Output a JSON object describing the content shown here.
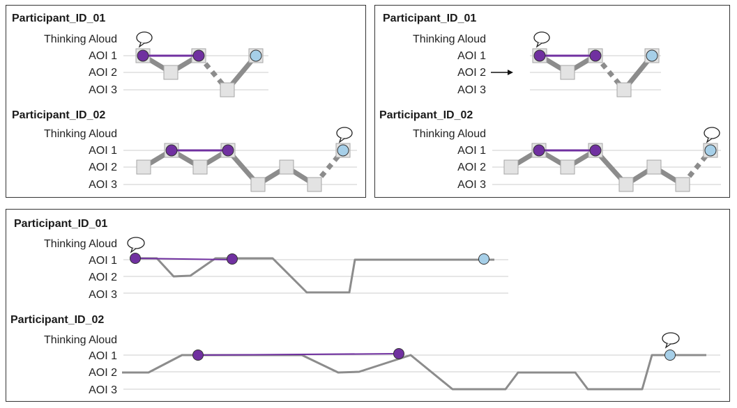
{
  "panels": [
    {
      "id": "top-left",
      "participants": [
        {
          "title": "Participant_ID_01",
          "rows": [
            "Thinking Aloud",
            "AOI 1",
            "AOI 2",
            "AOI 3"
          ]
        },
        {
          "title": "Participant_ID_02",
          "rows": [
            "Thinking Aloud",
            "AOI 1",
            "AOI 2",
            "AOI 3"
          ]
        }
      ]
    },
    {
      "id": "top-right",
      "participants": [
        {
          "title": "Participant_ID_01",
          "rows": [
            "Thinking Aloud",
            "AOI 1",
            "AOI 2",
            "AOI 3"
          ]
        },
        {
          "title": "Participant_ID_02",
          "rows": [
            "Thinking Aloud",
            "AOI 1",
            "AOI 2",
            "AOI 3"
          ]
        }
      ]
    },
    {
      "id": "bottom",
      "participants": [
        {
          "title": "Participant_ID_01",
          "rows": [
            "Thinking Aloud",
            "AOI 1",
            "AOI 2",
            "AOI 3"
          ]
        },
        {
          "title": "Participant_ID_02",
          "rows": [
            "Thinking Aloud",
            "AOI 1",
            "AOI 2",
            "AOI 3"
          ]
        }
      ]
    }
  ],
  "colors": {
    "border": "#333333",
    "gridline": "#cccccc",
    "path_gray": "#8c8c8c",
    "square_fill": "#e3e3e3",
    "square_stroke": "#a6a6a6",
    "purple_fill": "#7030a0",
    "purple_line": "#7030a0",
    "light_blue_fill": "#a6cfe8",
    "arrow": "#111111"
  },
  "icons": {
    "thinking_aloud": "speech-bubble-icon",
    "aoi_indicator": "right-arrow-icon"
  }
}
